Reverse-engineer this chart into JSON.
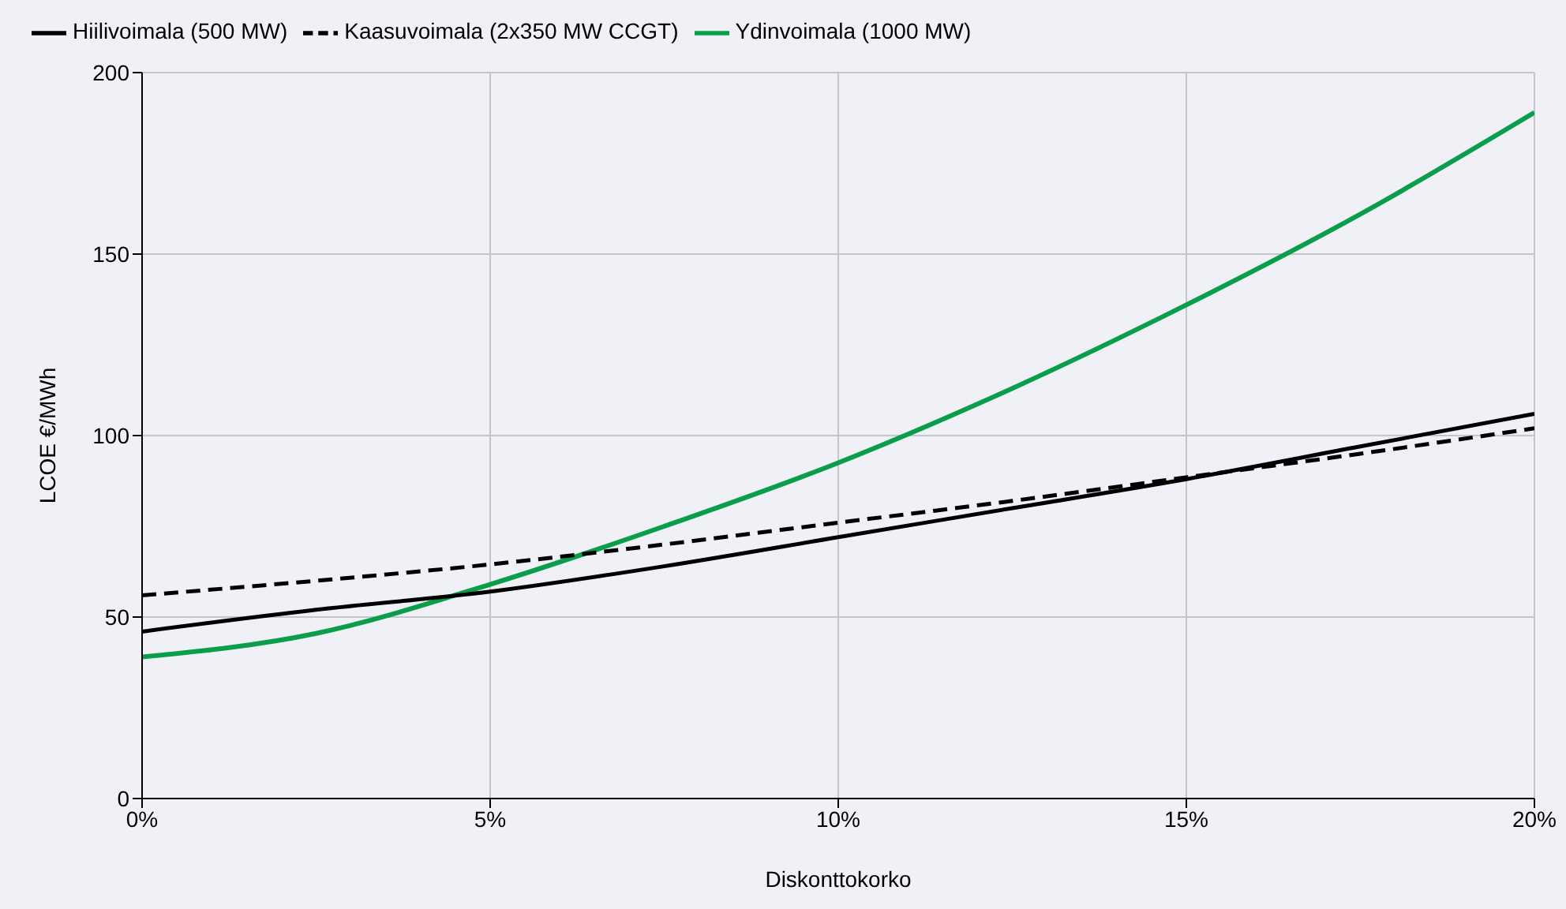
{
  "chart_data": {
    "type": "line",
    "xlabel": "Diskonttokorko",
    "ylabel": "LCOE €/MWh",
    "x": [
      0,
      2.5,
      5,
      7.5,
      10,
      12.5,
      15,
      17.5,
      20
    ],
    "series": [
      {
        "name": "Ydinvoimala (1000 MW)",
        "color": "#0a9e4a",
        "line_style": "solid",
        "values": [
          39,
          45.5,
          59,
          75,
          92.5,
          113,
          136,
          161,
          189
        ]
      },
      {
        "name": "Hiilivoimala (500 MW)",
        "color": "#000000",
        "line_style": "solid",
        "values": [
          46,
          52,
          57,
          64,
          72,
          80,
          88,
          97,
          106
        ]
      },
      {
        "name": "Kaasuvoimala (2x350 MW CCGT)",
        "color": "#000000",
        "line_style": "dashed",
        "values": [
          56,
          60,
          64.5,
          70,
          76,
          82,
          88.5,
          95,
          102
        ]
      }
    ],
    "xlim": [
      0,
      20
    ],
    "xticks": [
      {
        "value": 0,
        "label": "0%"
      },
      {
        "value": 5,
        "label": "5%"
      },
      {
        "value": 10,
        "label": "10%"
      },
      {
        "value": 15,
        "label": "15%"
      },
      {
        "value": 20,
        "label": "20%"
      }
    ],
    "ylim": [
      0,
      200
    ],
    "yticks": [
      0,
      50,
      100,
      150,
      200
    ],
    "grid": true,
    "legend": "top left",
    "marker": "none"
  }
}
